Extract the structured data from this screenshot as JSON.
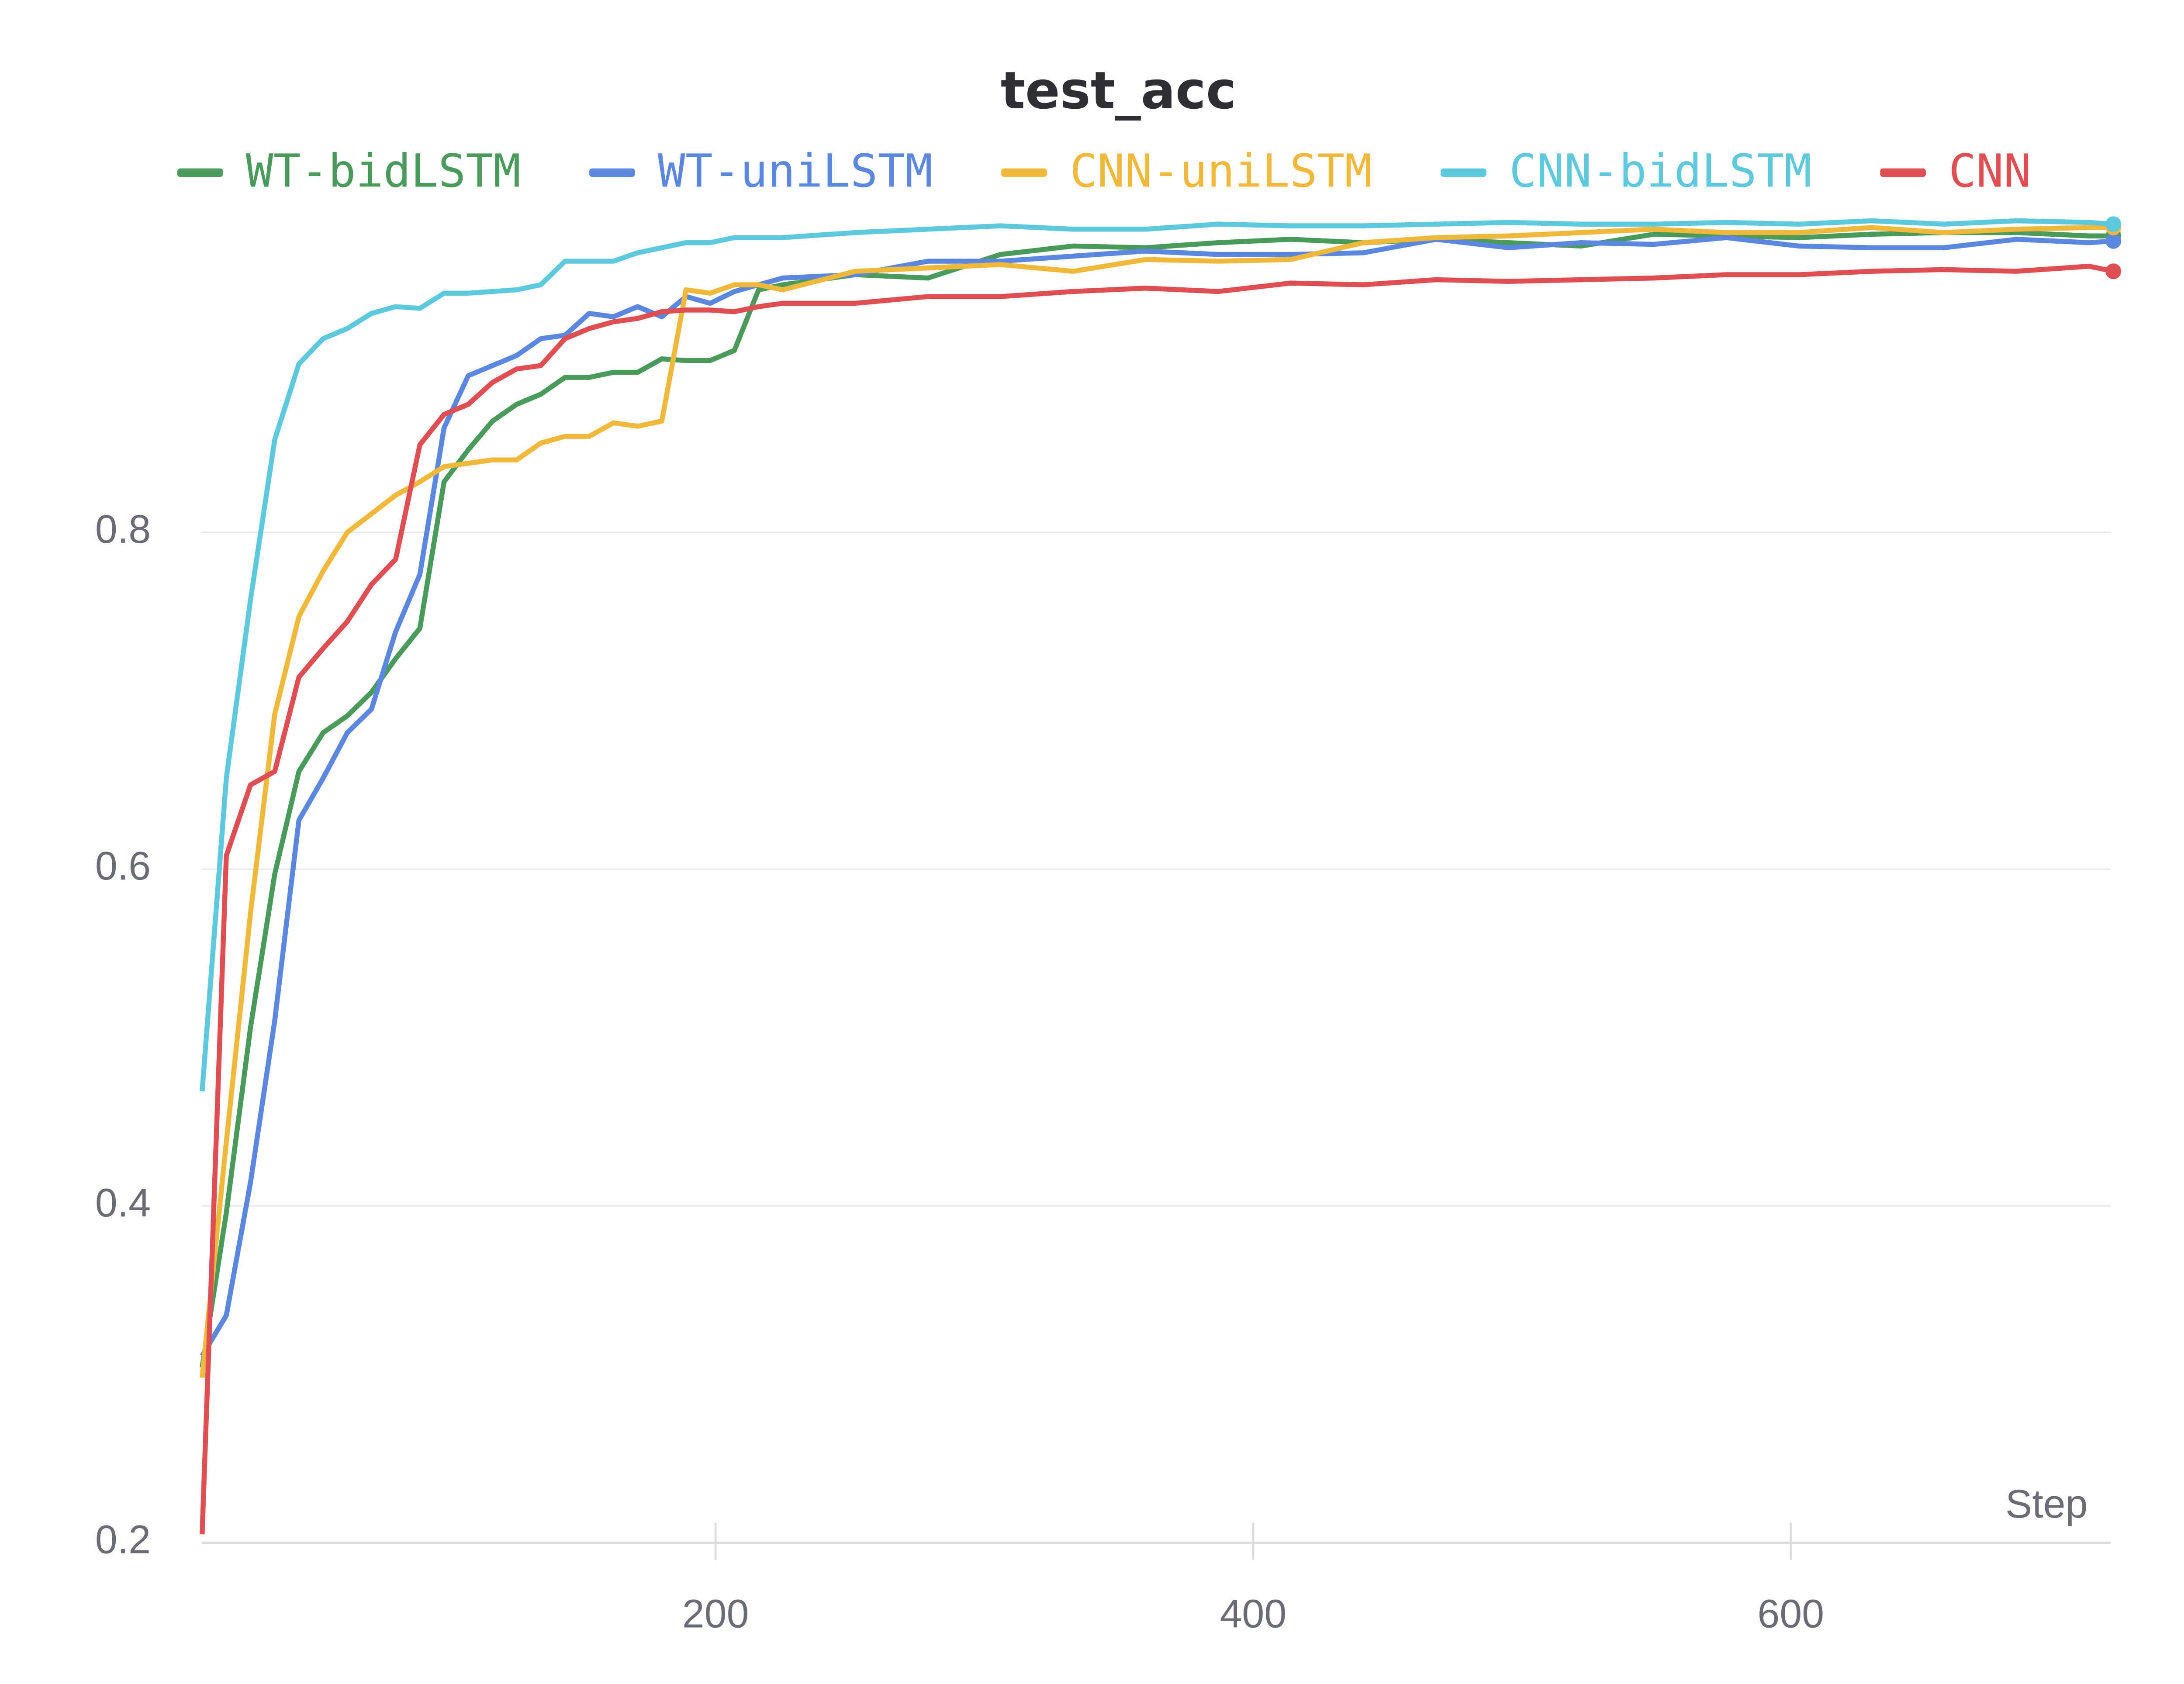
{
  "chart_data": {
    "type": "line",
    "title": "test_acc",
    "x_label": "Step",
    "x": [
      9,
      18,
      27,
      36,
      45,
      54,
      63,
      72,
      81,
      90,
      99,
      108,
      117,
      126,
      135,
      144,
      153,
      162,
      171,
      180,
      189,
      198,
      207,
      216,
      225,
      252,
      279,
      306,
      333,
      360,
      387,
      414,
      441,
      468,
      495,
      522,
      549,
      576,
      603,
      630,
      657,
      684,
      711,
      720
    ],
    "series": [
      {
        "name": "WT-bidLSTM",
        "color": "#4a9a5b",
        "values": [
          0.304,
          0.396,
          0.506,
          0.597,
          0.658,
          0.681,
          0.691,
          0.705,
          0.725,
          0.743,
          0.83,
          0.849,
          0.866,
          0.876,
          0.882,
          0.892,
          0.892,
          0.895,
          0.895,
          0.903,
          0.902,
          0.902,
          0.908,
          0.944,
          0.947,
          0.953,
          0.951,
          0.965,
          0.97,
          0.969,
          0.972,
          0.974,
          0.972,
          0.974,
          0.972,
          0.97,
          0.977,
          0.976,
          0.975,
          0.977,
          0.978,
          0.978,
          0.976,
          0.976
        ]
      },
      {
        "name": "WT-uniLSTM",
        "color": "#5b87de",
        "values": [
          0.311,
          0.335,
          0.414,
          0.51,
          0.629,
          0.654,
          0.681,
          0.695,
          0.741,
          0.775,
          0.862,
          0.893,
          0.899,
          0.905,
          0.915,
          0.917,
          0.93,
          0.928,
          0.934,
          0.928,
          0.94,
          0.936,
          0.943,
          0.947,
          0.951,
          0.953,
          0.961,
          0.961,
          0.964,
          0.967,
          0.965,
          0.965,
          0.966,
          0.974,
          0.969,
          0.972,
          0.971,
          0.975,
          0.97,
          0.969,
          0.969,
          0.974,
          0.972,
          0.973
        ]
      },
      {
        "name": "CNN-uniLSTM",
        "color": "#f0b93b",
        "values": [
          0.298,
          0.438,
          0.574,
          0.692,
          0.75,
          0.777,
          0.8,
          0.811,
          0.822,
          0.83,
          0.839,
          0.841,
          0.843,
          0.843,
          0.853,
          0.857,
          0.857,
          0.865,
          0.863,
          0.866,
          0.944,
          0.942,
          0.947,
          0.947,
          0.944,
          0.955,
          0.957,
          0.959,
          0.955,
          0.962,
          0.961,
          0.962,
          0.972,
          0.975,
          0.976,
          0.978,
          0.98,
          0.978,
          0.978,
          0.981,
          0.978,
          0.98,
          0.981,
          0.981
        ]
      },
      {
        "name": "CNN-bidLSTM",
        "color": "#5ec8dd",
        "values": [
          0.468,
          0.654,
          0.76,
          0.855,
          0.9,
          0.915,
          0.921,
          0.93,
          0.934,
          0.933,
          0.942,
          0.942,
          0.943,
          0.944,
          0.947,
          0.961,
          0.961,
          0.961,
          0.966,
          0.969,
          0.972,
          0.972,
          0.975,
          0.975,
          0.975,
          0.978,
          0.98,
          0.982,
          0.98,
          0.98,
          0.983,
          0.982,
          0.982,
          0.983,
          0.984,
          0.983,
          0.983,
          0.984,
          0.983,
          0.985,
          0.983,
          0.985,
          0.984,
          0.983
        ]
      },
      {
        "name": "CNN",
        "color": "#de4e52",
        "values": [
          0.205,
          0.608,
          0.65,
          0.658,
          0.714,
          0.731,
          0.747,
          0.769,
          0.784,
          0.852,
          0.87,
          0.876,
          0.889,
          0.897,
          0.899,
          0.915,
          0.921,
          0.925,
          0.927,
          0.931,
          0.932,
          0.932,
          0.931,
          0.934,
          0.936,
          0.936,
          0.94,
          0.94,
          0.943,
          0.945,
          0.943,
          0.948,
          0.947,
          0.95,
          0.949,
          0.95,
          0.951,
          0.953,
          0.953,
          0.955,
          0.956,
          0.955,
          0.958,
          0.955
        ]
      }
    ],
    "xlim": [
      9,
      720
    ],
    "xticks": [
      200,
      400,
      600
    ],
    "ylim": [
      0.2,
      1.0
    ],
    "yticks": [
      0.2,
      0.4,
      0.6,
      0.8
    ],
    "grid": true
  }
}
